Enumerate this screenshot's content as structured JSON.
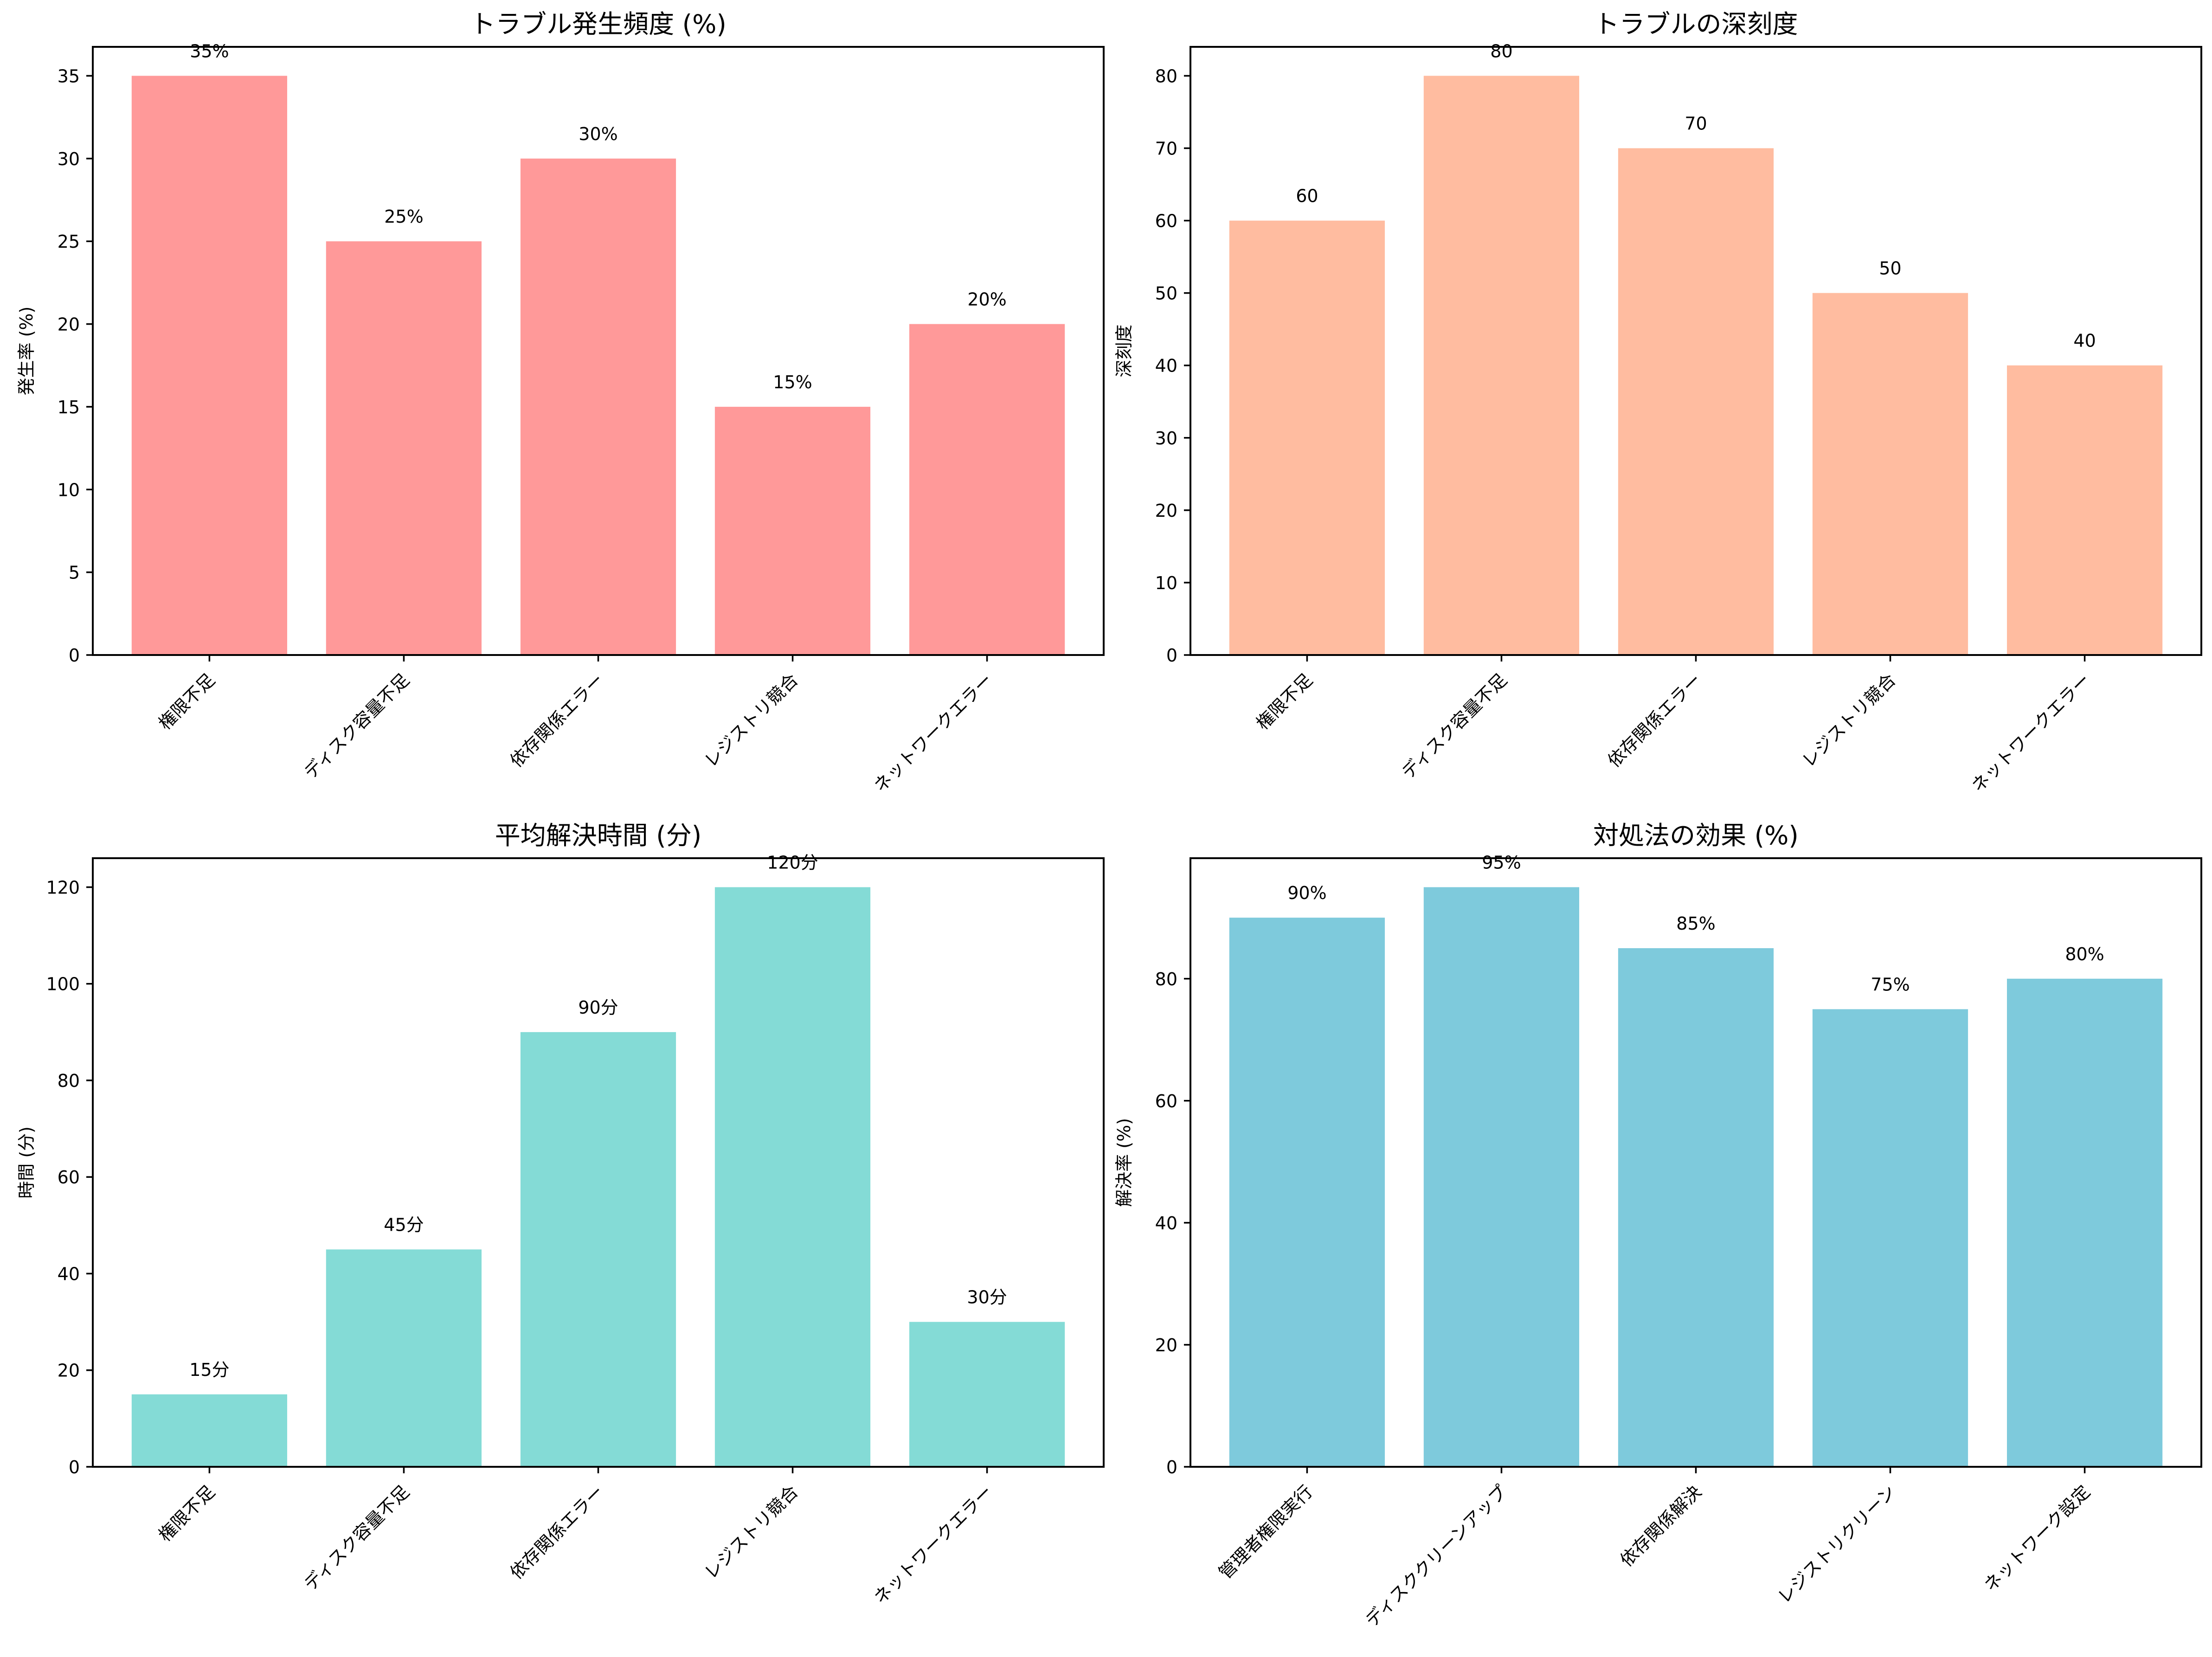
{
  "chart_data": [
    {
      "type": "bar",
      "title": "トラブル発生頻度 (%)",
      "xlabel": "",
      "ylabel": "発生率 (%)",
      "categories": [
        "権限不足",
        "ディスク容量不足",
        "依存関係エラー",
        "レジストリ競合",
        "ネットワークエラー"
      ],
      "values": [
        35,
        25,
        30,
        15,
        20
      ],
      "labels": [
        "35%",
        "25%",
        "30%",
        "15%",
        "20%"
      ],
      "ylim": [
        0,
        36.75
      ],
      "yticks": [
        0,
        5,
        10,
        15,
        20,
        25,
        30,
        35
      ],
      "color": "#FF9999",
      "grid": false,
      "position": "top-left"
    },
    {
      "type": "bar",
      "title": "トラブルの深刻度",
      "xlabel": "",
      "ylabel": "深刻度",
      "categories": [
        "権限不足",
        "ディスク容量不足",
        "依存関係エラー",
        "レジストリ競合",
        "ネットワークエラー"
      ],
      "values": [
        60,
        80,
        70,
        50,
        40
      ],
      "labels": [
        "60",
        "80",
        "70",
        "50",
        "40"
      ],
      "ylim": [
        0,
        84
      ],
      "yticks": [
        0,
        10,
        20,
        30,
        40,
        50,
        60,
        70,
        80
      ],
      "color": "#FFBCA0",
      "grid": false,
      "position": "top-right"
    },
    {
      "type": "bar",
      "title": "平均解決時間 (分)",
      "xlabel": "",
      "ylabel": "時間 (分)",
      "categories": [
        "権限不足",
        "ディスク容量不足",
        "依存関係エラー",
        "レジストリ競合",
        "ネットワークエラー"
      ],
      "values": [
        15,
        45,
        90,
        120,
        30
      ],
      "labels": [
        "15分",
        "45分",
        "90分",
        "120分",
        "30分"
      ],
      "ylim": [
        0,
        126
      ],
      "yticks": [
        0,
        20,
        40,
        60,
        80,
        100,
        120
      ],
      "color": "#84DBD6",
      "grid": false,
      "position": "bottom-left"
    },
    {
      "type": "bar",
      "title": "対処法の効果 (%)",
      "xlabel": "",
      "ylabel": "解決率 (%)",
      "categories": [
        "管理者権限実行",
        "ディスククリーンアップ",
        "依存関係解決",
        "レジストリクリーン",
        "ネットワーク設定"
      ],
      "values": [
        90,
        95,
        85,
        75,
        80
      ],
      "labels": [
        "90%",
        "95%",
        "85%",
        "75%",
        "80%"
      ],
      "ylim": [
        0,
        99.75
      ],
      "yticks": [
        0,
        20,
        40,
        60,
        80
      ],
      "color": "#7ECADC",
      "grid": false,
      "position": "bottom-right"
    }
  ]
}
